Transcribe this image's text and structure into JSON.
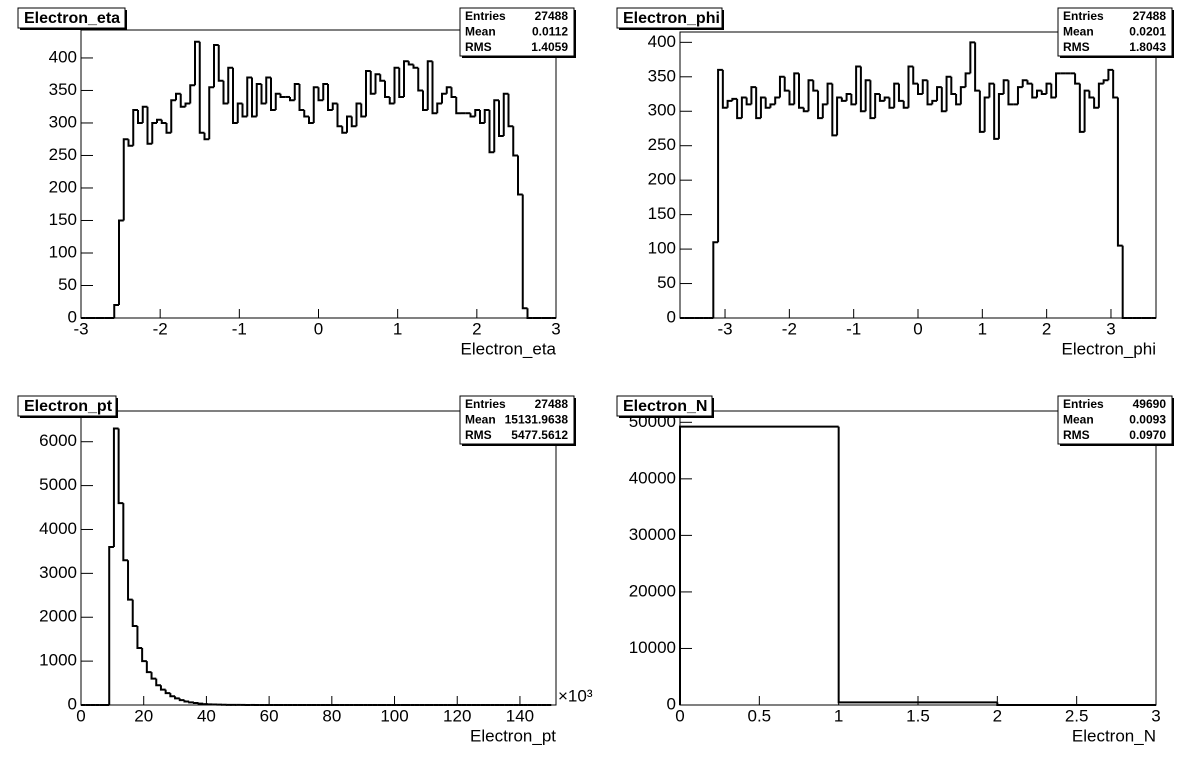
{
  "chart_data": [
    {
      "type": "histogram",
      "title": "Electron_eta",
      "x_label": "Electron_eta",
      "color": "#000000",
      "stats": [
        {
          "label": "Entries",
          "value": "27488"
        },
        {
          "label": "Mean",
          "value": "0.0112"
        },
        {
          "label": "RMS",
          "value": "1.4059"
        }
      ],
      "bins": [
        -3,
        -2.94,
        -2.88,
        -2.82,
        -2.76,
        -2.7,
        -2.64,
        -2.58,
        -2.52,
        -2.46,
        -2.4,
        -2.34,
        -2.28,
        -2.22,
        -2.16,
        -2.1,
        -2.04,
        -1.98,
        -1.92,
        -1.86,
        -1.8,
        -1.74,
        -1.68,
        -1.62,
        -1.56,
        -1.5,
        -1.44,
        -1.38,
        -1.32,
        -1.26,
        -1.2,
        -1.14,
        -1.08,
        -1.02,
        -0.96,
        -0.9,
        -0.84,
        -0.78,
        -0.72,
        -0.66,
        -0.6,
        -0.54,
        -0.48,
        -0.42,
        -0.36,
        -0.3,
        -0.24,
        -0.18,
        -0.12,
        -0.06,
        0,
        0.06,
        0.12,
        0.18,
        0.24,
        0.3,
        0.36,
        0.42,
        0.48,
        0.54,
        0.6,
        0.66,
        0.72,
        0.78,
        0.84,
        0.9,
        0.96,
        1.02,
        1.08,
        1.14,
        1.2,
        1.26,
        1.32,
        1.38,
        1.44,
        1.5,
        1.56,
        1.62,
        1.68,
        1.74,
        1.8,
        1.86,
        1.92,
        1.98,
        2.04,
        2.1,
        2.16,
        2.22,
        2.28,
        2.34,
        2.4,
        2.46,
        2.52,
        2.58,
        2.64,
        2.7,
        2.76,
        2.82,
        2.88,
        2.94,
        3
      ],
      "values": [
        0,
        0,
        0,
        0,
        0,
        0,
        0,
        20,
        150,
        275,
        265,
        320,
        300,
        325,
        268,
        300,
        305,
        300,
        285,
        335,
        345,
        325,
        330,
        358,
        425,
        285,
        275,
        355,
        420,
        365,
        330,
        385,
        300,
        330,
        310,
        370,
        310,
        360,
        330,
        370,
        320,
        345,
        340,
        340,
        335,
        360,
        320,
        310,
        300,
        355,
        335,
        360,
        320,
        330,
        295,
        285,
        310,
        295,
        330,
        310,
        380,
        345,
        375,
        365,
        340,
        330,
        385,
        340,
        395,
        390,
        385,
        350,
        320,
        395,
        315,
        330,
        345,
        355,
        340,
        315,
        315,
        315,
        310,
        320,
        300,
        320,
        255,
        335,
        280,
        345,
        295,
        250,
        190,
        15,
        0,
        0,
        0,
        0,
        0,
        0
      ],
      "xlim": [
        -3,
        3
      ],
      "xticks": [
        -3,
        -2,
        -1,
        0,
        1,
        2,
        3
      ],
      "ylim": [
        0,
        443
      ],
      "yticks": [
        0,
        50,
        100,
        150,
        200,
        250,
        300,
        350,
        400
      ]
    },
    {
      "type": "histogram",
      "title": "Electron_phi",
      "x_label": "Electron_phi",
      "color": "#000000",
      "stats": [
        {
          "label": "Entries",
          "value": "27488"
        },
        {
          "label": "Mean",
          "value": "0.0201"
        },
        {
          "label": "RMS",
          "value": "1.8043"
        }
      ],
      "bins": [
        -3.7,
        -3.626,
        -3.552,
        -3.478,
        -3.404,
        -3.33,
        -3.256,
        -3.182,
        -3.108,
        -3.034,
        -2.96,
        -2.886,
        -2.812,
        -2.738,
        -2.664,
        -2.59,
        -2.516,
        -2.442,
        -2.368,
        -2.294,
        -2.22,
        -2.146,
        -2.072,
        -1.998,
        -1.924,
        -1.85,
        -1.776,
        -1.702,
        -1.628,
        -1.554,
        -1.48,
        -1.406,
        -1.332,
        -1.258,
        -1.184,
        -1.11,
        -1.036,
        -0.962,
        -0.888,
        -0.814,
        -0.74,
        -0.666,
        -0.592,
        -0.518,
        -0.444,
        -0.37,
        -0.296,
        -0.222,
        -0.148,
        -0.074,
        0,
        0.074,
        0.148,
        0.222,
        0.296,
        0.37,
        0.444,
        0.518,
        0.592,
        0.666,
        0.74,
        0.814,
        0.888,
        0.962,
        1.036,
        1.11,
        1.184,
        1.258,
        1.332,
        1.406,
        1.48,
        1.554,
        1.628,
        1.702,
        1.776,
        1.85,
        1.924,
        1.998,
        2.072,
        2.146,
        2.22,
        2.294,
        2.368,
        2.442,
        2.516,
        2.59,
        2.664,
        2.738,
        2.812,
        2.886,
        2.96,
        3.034,
        3.108,
        3.182,
        3.256,
        3.33,
        3.404,
        3.478,
        3.552,
        3.626,
        3.7
      ],
      "values": [
        0,
        0,
        0,
        0,
        0,
        0,
        0,
        110,
        360,
        305,
        315,
        318,
        290,
        320,
        310,
        335,
        290,
        320,
        305,
        310,
        320,
        350,
        330,
        310,
        355,
        305,
        300,
        345,
        330,
        290,
        310,
        340,
        265,
        320,
        315,
        325,
        310,
        365,
        300,
        345,
        290,
        325,
        315,
        320,
        305,
        340,
        315,
        305,
        365,
        340,
        325,
        345,
        310,
        315,
        335,
        300,
        350,
        325,
        310,
        335,
        355,
        400,
        330,
        270,
        320,
        340,
        260,
        325,
        345,
        310,
        310,
        335,
        345,
        340,
        320,
        330,
        325,
        340,
        320,
        355,
        355,
        355,
        355,
        340,
        270,
        330,
        320,
        305,
        340,
        345,
        360,
        320,
        105,
        0,
        0,
        0,
        0,
        0,
        0,
        0
      ],
      "xlim": [
        -3.7,
        3.7
      ],
      "xticks": [
        -3,
        -2,
        -1,
        0,
        1,
        2,
        3
      ],
      "ylim": [
        0,
        415
      ],
      "yticks": [
        0,
        50,
        100,
        150,
        200,
        250,
        300,
        350,
        400
      ]
    },
    {
      "type": "histogram",
      "title": "Electron_pt",
      "x_label": "Electron_pt",
      "x_exponent": "×10³",
      "color": "#000000",
      "stats": [
        {
          "label": "Entries",
          "value": "27488"
        },
        {
          "label": "Mean",
          "value": "15131.9638"
        },
        {
          "label": "RMS",
          "value": "5477.5612"
        }
      ],
      "bins": [
        0,
        1.5,
        3,
        4.5,
        6,
        7.5,
        9,
        10.5,
        12,
        13.5,
        15,
        16.5,
        18,
        19.5,
        21,
        22.5,
        24,
        25.5,
        27,
        28.5,
        30,
        31.5,
        33,
        34.5,
        36,
        37.5,
        39,
        40.5,
        42,
        43.5,
        45,
        46.5,
        48,
        49.5,
        51,
        52.5,
        54,
        55.5,
        57,
        58.5,
        60,
        61.5,
        63,
        64.5,
        66,
        67.5,
        69,
        70.5,
        72,
        73.5,
        75,
        76.5,
        78,
        79.5,
        81,
        82.5,
        84,
        85.5,
        87,
        88.5,
        90,
        91.5,
        93,
        94.5,
        96,
        97.5,
        99,
        100.5,
        102,
        103.5,
        105,
        106.5,
        108,
        109.5,
        111,
        112.5,
        114,
        115.5,
        117,
        118.5,
        120,
        121.5,
        123,
        124.5,
        126,
        127.5,
        129,
        130.5,
        132,
        133.5,
        135,
        136.5,
        138,
        139.5,
        141,
        142.5,
        144,
        145.5,
        147,
        148.5,
        150
      ],
      "values": [
        0,
        0,
        0,
        0,
        0,
        0,
        3600,
        6300,
        4600,
        3300,
        2400,
        1800,
        1300,
        1000,
        750,
        600,
        450,
        350,
        270,
        200,
        150,
        110,
        80,
        60,
        45,
        30,
        20,
        15,
        10,
        8,
        5,
        4,
        3,
        2,
        2,
        1,
        1,
        0,
        0,
        0,
        0,
        0,
        0,
        0,
        0,
        0,
        0,
        0,
        0,
        0,
        0,
        0,
        0,
        0,
        0,
        0,
        0,
        0,
        0,
        0,
        0,
        0,
        0,
        0,
        0,
        0,
        0,
        0,
        0,
        0,
        0,
        0,
        0,
        0,
        0,
        0,
        0,
        0,
        0,
        0,
        0,
        0,
        0,
        0,
        0,
        0,
        0,
        0,
        0,
        0,
        0,
        0,
        0,
        0,
        0,
        0,
        0,
        0,
        0,
        0
      ],
      "xlim": [
        0,
        151.5
      ],
      "xticks": [
        0,
        20,
        40,
        60,
        80,
        100,
        120,
        140
      ],
      "ylim": [
        0,
        6700
      ],
      "yticks": [
        0,
        1000,
        2000,
        3000,
        4000,
        5000,
        6000
      ]
    },
    {
      "type": "histogram",
      "title": "Electron_N",
      "x_label": "Electron_N",
      "color": "#000000",
      "stats": [
        {
          "label": "Entries",
          "value": "49690"
        },
        {
          "label": "Mean",
          "value": "0.0093"
        },
        {
          "label": "RMS",
          "value": "0.0970"
        }
      ],
      "bins": [
        0,
        1,
        2,
        3
      ],
      "values": [
        49228,
        462,
        0
      ],
      "xlim": [
        0,
        3
      ],
      "xticks": [
        0,
        0.5,
        1,
        1.5,
        2,
        2.5,
        3
      ],
      "ylim": [
        0,
        52000
      ],
      "yticks": [
        0,
        10000,
        20000,
        30000,
        40000,
        50000
      ]
    }
  ]
}
